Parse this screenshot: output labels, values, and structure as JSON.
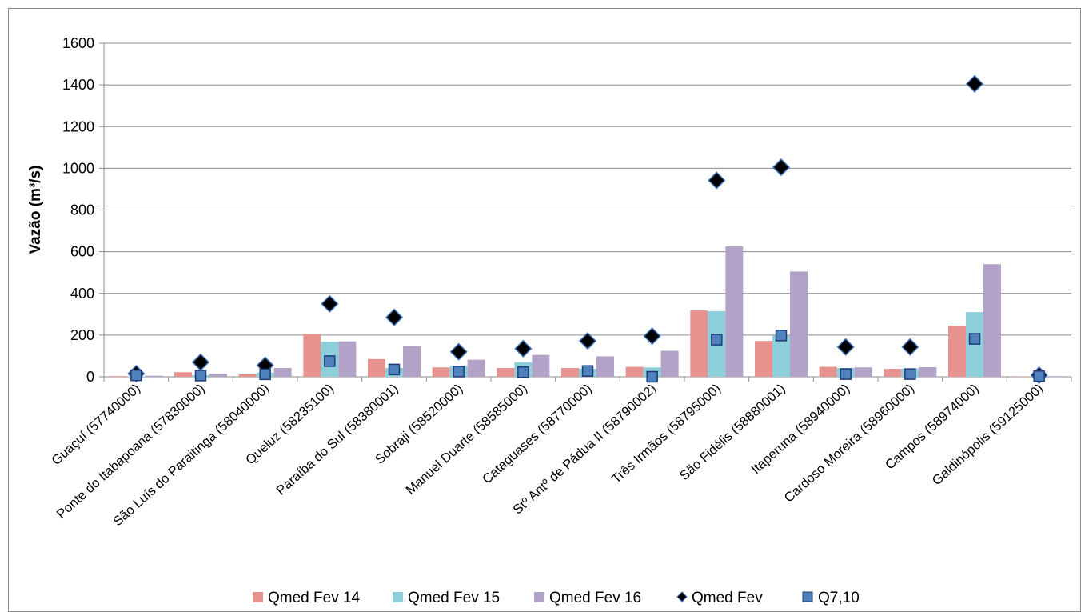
{
  "chart_data": {
    "type": "bar",
    "title": "",
    "xlabel": "",
    "ylabel": "Vazão (m³/s)",
    "ylim": [
      0,
      1600
    ],
    "yticks": [
      0,
      200,
      400,
      600,
      800,
      1000,
      1200,
      1400,
      1600
    ],
    "grid": true,
    "legend_position": "bottom",
    "categories": [
      "Guaçuí (57740000)",
      "Ponte do Itabapoana (57830000)",
      "São Luís do Paraitinga (58040000)",
      "Queluz (58235100)",
      "Paraíba do Sul (58380001)",
      "Sobraji (58520000)",
      "Manuel Duarte (58585000)",
      "Cataguases (58770000)",
      "Stº Antº de Pádua II (58790002)",
      "Três Irmãos (58795000)",
      "São Fidélis (58880001)",
      "Itaperuna (58940000)",
      "Cardoso Moreira (58960000)",
      "Campos (58974000)",
      "Galdinópolis (59125000)"
    ],
    "series": [
      {
        "name": "Qmed Fev 14",
        "kind": "bar",
        "color": "#e6928f",
        "values": [
          3,
          22,
          12,
          205,
          85,
          45,
          42,
          42,
          48,
          318,
          172,
          48,
          38,
          245,
          2
        ]
      },
      {
        "name": "Qmed Fev 15",
        "kind": "bar",
        "color": "#8ecfdc",
        "values": [
          2,
          8,
          20,
          168,
          42,
          52,
          70,
          38,
          45,
          315,
          198,
          42,
          40,
          310,
          1
        ]
      },
      {
        "name": "Qmed Fev 16",
        "kind": "bar",
        "color": "#b3a2c7",
        "values": [
          5,
          15,
          42,
          170,
          148,
          82,
          105,
          98,
          125,
          625,
          505,
          45,
          46,
          540,
          3
        ]
      },
      {
        "name": "Qmed Fev",
        "kind": "marker",
        "marker": "diamond",
        "color": "#000000",
        "edge": "#3b6fb6",
        "values": [
          15,
          70,
          55,
          350,
          285,
          120,
          135,
          172,
          195,
          942,
          1005,
          143,
          143,
          1405,
          8
        ]
      },
      {
        "name": "Q7,10",
        "kind": "marker",
        "marker": "square",
        "color": "#4f81bd",
        "edge": "#1f3c78",
        "values": [
          7,
          6,
          12,
          75,
          35,
          25,
          22,
          28,
          0,
          178,
          198,
          13,
          13,
          182,
          3
        ]
      }
    ]
  }
}
